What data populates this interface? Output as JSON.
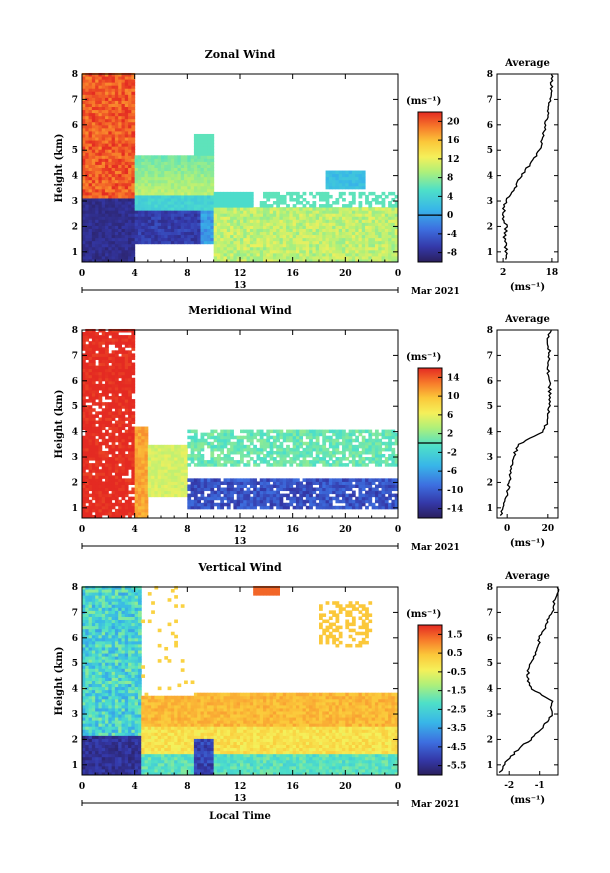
{
  "chart_data": [
    {
      "type": "heatmap",
      "title": "Zonal Wind",
      "ylabel": "Height (km)",
      "ylim": [
        0.6,
        8
      ],
      "yticks": [
        1,
        2,
        3,
        4,
        5,
        6,
        7,
        8
      ],
      "xticks": [
        "0",
        "4",
        "8",
        "12",
        "16",
        "20",
        "0"
      ],
      "xlim_hours": [
        0,
        24
      ],
      "date_label": "13",
      "date_right": "Mar 2021",
      "colorbar": {
        "unit": "(ms⁻¹)",
        "ticks": [
          "20",
          "16",
          "12",
          "8",
          "4",
          "0",
          "-4",
          "-8"
        ],
        "range": [
          -10,
          22
        ],
        "marker_value": 0
      },
      "average": {
        "title": "Average",
        "xticks": [
          "2",
          "18"
        ],
        "xlim": [
          0,
          20
        ],
        "xlabel": "(ms⁻¹)",
        "profile": [
          [
            0.7,
            3
          ],
          [
            1,
            3
          ],
          [
            1.5,
            2.5
          ],
          [
            2,
            3
          ],
          [
            2.4,
            2
          ],
          [
            2.8,
            2.5
          ],
          [
            3,
            3
          ],
          [
            3.5,
            6
          ],
          [
            4,
            8
          ],
          [
            4.5,
            11
          ],
          [
            5,
            14
          ],
          [
            5.5,
            15
          ],
          [
            6,
            16
          ],
          [
            6.5,
            17
          ],
          [
            7,
            17.5
          ],
          [
            7.5,
            18
          ],
          [
            8,
            18
          ]
        ]
      }
    },
    {
      "type": "heatmap",
      "title": "Meridional Wind",
      "ylabel": "Height (km)",
      "ylim": [
        0.6,
        8
      ],
      "yticks": [
        1,
        2,
        3,
        4,
        5,
        6,
        7,
        8
      ],
      "xticks": [
        "0",
        "4",
        "8",
        "12",
        "16",
        "20",
        "0"
      ],
      "xlim_hours": [
        0,
        24
      ],
      "date_label": "13",
      "date_right": "Mar 2021",
      "colorbar": {
        "unit": "(ms⁻¹)",
        "ticks": [
          "14",
          "10",
          "6",
          "2",
          "-2",
          "-6",
          "-10",
          "-14"
        ],
        "range": [
          -16,
          16
        ],
        "marker_value": 0
      },
      "average": {
        "title": "Average",
        "xticks": [
          "0",
          "20"
        ],
        "xlim": [
          -5,
          25
        ],
        "xlabel": "(ms⁻¹)",
        "profile": [
          [
            0.7,
            -3
          ],
          [
            1,
            -2
          ],
          [
            1.5,
            0
          ],
          [
            2,
            1
          ],
          [
            2.5,
            2
          ],
          [
            3,
            3
          ],
          [
            3.5,
            6
          ],
          [
            3.8,
            12
          ],
          [
            4,
            18
          ],
          [
            4.5,
            20
          ],
          [
            5,
            21
          ],
          [
            5.5,
            21
          ],
          [
            6,
            21
          ],
          [
            6.5,
            20
          ],
          [
            7,
            21
          ],
          [
            7.5,
            20
          ],
          [
            8,
            21
          ]
        ]
      }
    },
    {
      "type": "heatmap",
      "title": "Vertical Wind",
      "ylabel": "Height (km)",
      "xlabel": "Local Time",
      "ylim": [
        0.6,
        8
      ],
      "yticks": [
        1,
        2,
        3,
        4,
        5,
        6,
        7,
        8
      ],
      "xticks": [
        "0",
        "4",
        "8",
        "12",
        "16",
        "20",
        "0"
      ],
      "xlim_hours": [
        0,
        24
      ],
      "date_label": "13",
      "date_right": "Mar 2021",
      "colorbar": {
        "unit": "(ms⁻¹)",
        "ticks": [
          "1.5",
          "0.5",
          "-0.5",
          "-1.5",
          "-2.5",
          "-3.5",
          "-4.5",
          "-5.5"
        ],
        "range": [
          -6,
          2
        ],
        "marker_value": null
      },
      "average": {
        "title": "Average",
        "xticks": [
          "-2",
          "-1"
        ],
        "xlim": [
          -2.4,
          -0.4
        ],
        "xlabel": "(ms⁻¹)",
        "profile": [
          [
            0.7,
            -2.3
          ],
          [
            1,
            -2.2
          ],
          [
            1.5,
            -1.8
          ],
          [
            2,
            -1.3
          ],
          [
            2.5,
            -0.9
          ],
          [
            3,
            -0.6
          ],
          [
            3.5,
            -0.6
          ],
          [
            3.8,
            -1.0
          ],
          [
            4,
            -1.3
          ],
          [
            4.5,
            -1.4
          ],
          [
            5,
            -1.3
          ],
          [
            5.5,
            -1.1
          ],
          [
            6,
            -1.0
          ],
          [
            6.5,
            -0.8
          ],
          [
            7,
            -0.6
          ],
          [
            7.5,
            -0.5
          ],
          [
            8,
            -0.4
          ]
        ]
      }
    }
  ]
}
